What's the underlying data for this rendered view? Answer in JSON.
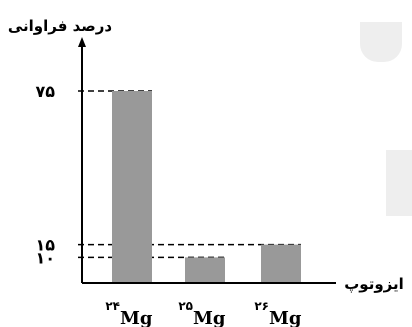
{
  "chart_data": {
    "type": "bar",
    "ylabel": "درصد فراوانی",
    "xlabel": "ایزوتوپ",
    "categories": [
      {
        "mass": "۲۴",
        "symbol": "Mg"
      },
      {
        "mass": "۲۵",
        "symbol": "Mg"
      },
      {
        "mass": "۲۶",
        "symbol": "Mg"
      }
    ],
    "values": [
      75,
      10,
      15
    ],
    "ylim": [
      0,
      85
    ],
    "yticks": [
      {
        "value": 75,
        "label": "۷۵"
      },
      {
        "value": 15,
        "label": "۱۵"
      },
      {
        "value": 10,
        "label": "۱۰"
      }
    ],
    "guide_lines": "dashed",
    "grid": false,
    "legend": "none",
    "colors": {
      "bar": "#999999",
      "axis": "#000000",
      "text": "#000000"
    }
  }
}
